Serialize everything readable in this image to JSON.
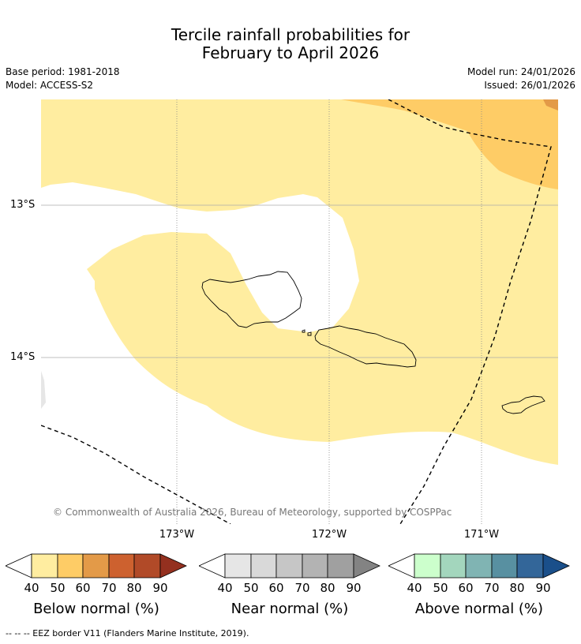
{
  "title": {
    "line1": "Tercile rainfall probabilities for",
    "line2": "February to April 2026"
  },
  "meta": {
    "base_period": "Base period: 1981-2018",
    "model": "Model: ACCESS-S2",
    "model_run": "Model run: 24/01/2026",
    "issued": "Issued: 26/01/2026"
  },
  "map": {
    "lat_labels": [
      "13°S",
      "14°S"
    ],
    "lon_labels": [
      "173°W",
      "172°W",
      "171°W"
    ],
    "copyright": "© Commonwealth of Australia 2026, Bureau of Meteorology, supported by COSPPac",
    "regions": [
      {
        "category": "below",
        "class": "40-50",
        "color": "#ffeda0"
      },
      {
        "category": "below",
        "class": "50-60",
        "color": "#fecc66"
      },
      {
        "category": "below",
        "class": "60-70",
        "color": "#e39a48"
      },
      {
        "category": "near",
        "class": "40-50",
        "color": "#e6e6e6"
      }
    ]
  },
  "legend": {
    "bars": [
      {
        "title": "Below normal (%)",
        "ticks": [
          "40",
          "50",
          "60",
          "70",
          "80",
          "90"
        ],
        "colors": [
          "#ffeda0",
          "#fecc66",
          "#e39a48",
          "#cd612f",
          "#b14a28",
          "#94301f"
        ]
      },
      {
        "title": "Near normal (%)",
        "ticks": [
          "40",
          "50",
          "60",
          "70",
          "80",
          "90"
        ],
        "colors": [
          "#e6e6e6",
          "#d9d9d9",
          "#c6c6c6",
          "#b3b3b3",
          "#a0a0a0",
          "#838383"
        ]
      },
      {
        "title": "Above normal (%)",
        "ticks": [
          "40",
          "50",
          "60",
          "70",
          "80",
          "90"
        ],
        "colors": [
          "#ccffcc",
          "#a3d6bd",
          "#80b4b3",
          "#5890a1",
          "#336699",
          "#1a4f8a"
        ]
      }
    ]
  },
  "footer": "--  --  -- EEZ border V11 (Flanders Marine Institute, 2019)."
}
